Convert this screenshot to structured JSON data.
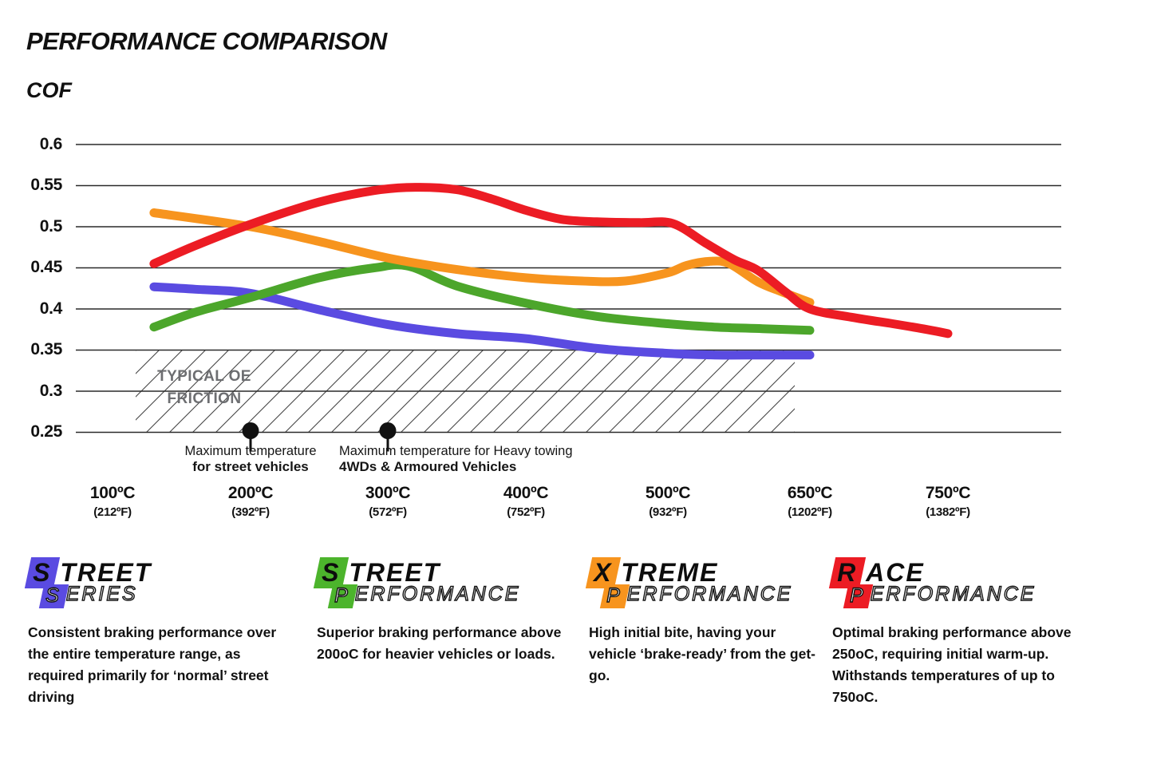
{
  "header": {
    "title": "PERFORMANCE COMPARISON",
    "axis_label": "COF"
  },
  "chart_data": {
    "type": "line",
    "title": "PERFORMANCE COMPARISON",
    "ylabel": "COF",
    "ylim": [
      0.25,
      0.6
    ],
    "grid": true,
    "legend_position": "bottom",
    "y_ticks": [
      0.6,
      0.55,
      0.5,
      0.45,
      0.4,
      0.35,
      0.3,
      0.25
    ],
    "y_tick_labels": [
      "0.6",
      "0.55",
      "0.5",
      "0.45",
      "0.4",
      "0.35",
      "0.3",
      "0.25"
    ],
    "x_ticks": [
      {
        "t": 100,
        "c": "100ºC",
        "f": "(212ºF)"
      },
      {
        "t": 200,
        "c": "200ºC",
        "f": "(392ºF)"
      },
      {
        "t": 300,
        "c": "300ºC",
        "f": "(572ºF)"
      },
      {
        "t": 400,
        "c": "400ºC",
        "f": "(752ºF)"
      },
      {
        "t": 500,
        "c": "500ºC",
        "f": "(932ºF)"
      },
      {
        "t": 650,
        "c": "650ºC",
        "f": "(1202ºF)"
      },
      {
        "t": 750,
        "c": "750ºC",
        "f": "(1382ºF)"
      }
    ],
    "series": [
      {
        "name": "Street Series",
        "color": "#5A4BE1",
        "points": [
          [
            130,
            0.427
          ],
          [
            160,
            0.424
          ],
          [
            200,
            0.419
          ],
          [
            250,
            0.399
          ],
          [
            300,
            0.381
          ],
          [
            350,
            0.37
          ],
          [
            400,
            0.364
          ],
          [
            450,
            0.352
          ],
          [
            500,
            0.346
          ],
          [
            550,
            0.344
          ],
          [
            600,
            0.344
          ],
          [
            650,
            0.344
          ]
        ]
      },
      {
        "name": "Street Performance",
        "color": "#4CA62B",
        "points": [
          [
            130,
            0.378
          ],
          [
            160,
            0.396
          ],
          [
            200,
            0.414
          ],
          [
            250,
            0.438
          ],
          [
            290,
            0.45
          ],
          [
            315,
            0.452
          ],
          [
            350,
            0.428
          ],
          [
            400,
            0.407
          ],
          [
            450,
            0.391
          ],
          [
            500,
            0.382
          ],
          [
            550,
            0.378
          ],
          [
            600,
            0.376
          ],
          [
            650,
            0.374
          ]
        ]
      },
      {
        "name": "Xtreme Performance",
        "color": "#F7941E",
        "points": [
          [
            130,
            0.517
          ],
          [
            200,
            0.5
          ],
          [
            250,
            0.482
          ],
          [
            300,
            0.462
          ],
          [
            350,
            0.448
          ],
          [
            400,
            0.438
          ],
          [
            440,
            0.434
          ],
          [
            470,
            0.434
          ],
          [
            500,
            0.444
          ],
          [
            520,
            0.453
          ],
          [
            545,
            0.458
          ],
          [
            565,
            0.455
          ],
          [
            595,
            0.433
          ],
          [
            620,
            0.421
          ],
          [
            650,
            0.408
          ]
        ]
      },
      {
        "name": "Race Performance",
        "color": "#EC1C24",
        "points": [
          [
            130,
            0.455
          ],
          [
            160,
            0.477
          ],
          [
            200,
            0.503
          ],
          [
            250,
            0.53
          ],
          [
            290,
            0.544
          ],
          [
            320,
            0.548
          ],
          [
            350,
            0.545
          ],
          [
            375,
            0.534
          ],
          [
            400,
            0.52
          ],
          [
            425,
            0.509
          ],
          [
            450,
            0.506
          ],
          [
            480,
            0.505
          ],
          [
            505,
            0.504
          ],
          [
            540,
            0.48
          ],
          [
            570,
            0.46
          ],
          [
            595,
            0.447
          ],
          [
            625,
            0.42
          ],
          [
            650,
            0.4
          ],
          [
            680,
            0.39
          ],
          [
            710,
            0.382
          ],
          [
            735,
            0.375
          ],
          [
            750,
            0.37
          ]
        ]
      }
    ],
    "oe_band": {
      "cof_min": 0.25,
      "cof_max": 0.35,
      "label_line1": "TYPICAL OE",
      "label_line2": "FRICTION"
    },
    "markers": [
      {
        "temp": 200,
        "label_line1": "Maximum temperature",
        "label_line2": "for street vehicles"
      },
      {
        "temp": 300,
        "label_line1": "Maximum temperature for Heavy towing",
        "label_line2": "4WDs & Armoured Vehicles"
      }
    ]
  },
  "legend": [
    {
      "accent": "#5A4BE1",
      "top_initial": "S",
      "top_rest": "TREET",
      "bottom_initial": "S",
      "bottom_rest": "ERIES",
      "description": "Consistent braking performance over the entire temperature range, as required primarily for ‘normal’ street driving"
    },
    {
      "accent": "#4CB42C",
      "top_initial": "S",
      "top_rest": "TREET",
      "bottom_initial": "P",
      "bottom_rest": "ERFORMANCE",
      "description": "Superior braking performance above 200oC for heavier vehicles or loads."
    },
    {
      "accent": "#F7941E",
      "top_initial": "X",
      "top_rest": "TREME",
      "bottom_initial": "P",
      "bottom_rest": "ERFORMANCE",
      "description": "High initial bite, having your vehicle ‘brake-ready’ from the get-go."
    },
    {
      "accent": "#EC1C24",
      "top_initial": "R",
      "top_rest": "ACE",
      "bottom_initial": "P",
      "bottom_rest": "ERFORMANCE",
      "description": "Optimal braking performance above 250oC, requiring initial warm-up. Withstands temperatures of up to 750oC."
    }
  ]
}
